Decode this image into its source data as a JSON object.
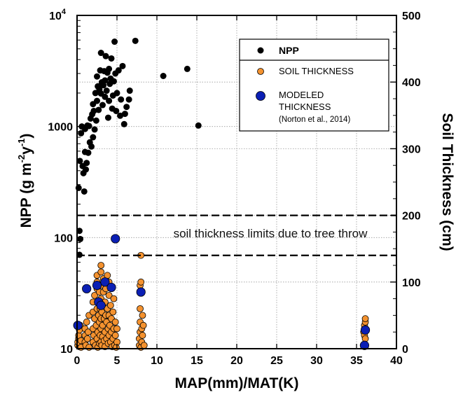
{
  "chart_data": {
    "type": "scatter",
    "title": "",
    "xlabel": "MAP(mm)/MAT(K)",
    "ylabel_left": "NPP (g m",
    "ylabel_left_sup1": "-2",
    "ylabel_left_mid": "y",
    "ylabel_left_sup2": "-1",
    "ylabel_left_end": ")",
    "ylabel_right": "Soil Thickness (cm)",
    "xlim": [
      0,
      40
    ],
    "xticks": [
      "0",
      "5",
      "10",
      "15",
      "20",
      "25",
      "30",
      "35",
      "40"
    ],
    "ylim_left": [
      10,
      10000
    ],
    "yscale_left": "log",
    "yticks_left": [
      {
        "value": 10,
        "label": "10"
      },
      {
        "value": 100,
        "label": "100"
      },
      {
        "value": 1000,
        "label": "1000"
      },
      {
        "value": 10000,
        "label": "10",
        "sup": "4"
      }
    ],
    "ylim_right": [
      0,
      500
    ],
    "yticks_right": [
      "0",
      "100",
      "200",
      "300",
      "400",
      "500"
    ],
    "grid": true,
    "legend_position": "top-right",
    "annotation": "soil thickness limits due to tree throw",
    "limit_lines_cm": [
      200,
      140
    ],
    "legend": {
      "npp_label": "NPP",
      "soil_label": "SOIL THICKNESS",
      "modeled_line1": "MODELED",
      "modeled_line2": "THICKNESS",
      "modeled_line3": "(Norton et al., 2014)"
    },
    "colors": {
      "npp": "#000000",
      "soil": "#f4922f",
      "modeled": "#0b1fb4",
      "stroke": "#000000"
    },
    "series": [
      {
        "name": "NPP",
        "axis": "left",
        "points": [
          [
            0.2,
            280
          ],
          [
            0.35,
            490
          ],
          [
            0.5,
            870
          ],
          [
            0.6,
            1000
          ],
          [
            0.7,
            440
          ],
          [
            0.8,
            380
          ],
          [
            0.9,
            260
          ],
          [
            1.0,
            590
          ],
          [
            1.0,
            950
          ],
          [
            1.1,
            410
          ],
          [
            1.2,
            470
          ],
          [
            1.3,
            1020
          ],
          [
            1.4,
            580
          ],
          [
            1.5,
            1010
          ],
          [
            1.6,
            720
          ],
          [
            1.7,
            1180
          ],
          [
            1.8,
            660
          ],
          [
            1.9,
            1290
          ],
          [
            2.0,
            800
          ],
          [
            2.0,
            1590
          ],
          [
            2.1,
            1380
          ],
          [
            2.2,
            940
          ],
          [
            2.3,
            2000
          ],
          [
            2.4,
            1130
          ],
          [
            2.5,
            1700
          ],
          [
            2.5,
            2820
          ],
          [
            2.6,
            2300
          ],
          [
            2.7,
            1410
          ],
          [
            2.8,
            2150
          ],
          [
            2.9,
            3200
          ],
          [
            3.0,
            1980
          ],
          [
            3.0,
            4600
          ],
          [
            3.1,
            2500
          ],
          [
            3.2,
            1560
          ],
          [
            3.3,
            2350
          ],
          [
            3.4,
            3150
          ],
          [
            3.5,
            1850
          ],
          [
            3.5,
            2600
          ],
          [
            3.6,
            4300
          ],
          [
            3.7,
            2100
          ],
          [
            3.8,
            3050
          ],
          [
            3.9,
            1200
          ],
          [
            4.0,
            1700
          ],
          [
            4.0,
            3300
          ],
          [
            4.1,
            2420
          ],
          [
            4.2,
            2700
          ],
          [
            4.3,
            4100
          ],
          [
            4.4,
            1450
          ],
          [
            4.5,
            1900
          ],
          [
            4.6,
            2550
          ],
          [
            4.7,
            5800
          ],
          [
            4.8,
            3000
          ],
          [
            4.9,
            1380
          ],
          [
            5.0,
            2000
          ],
          [
            5.2,
            3200
          ],
          [
            5.4,
            1250
          ],
          [
            5.5,
            1750
          ],
          [
            5.7,
            3500
          ],
          [
            5.9,
            1050
          ],
          [
            6.0,
            1300
          ],
          [
            6.2,
            1500
          ],
          [
            6.5,
            1750
          ],
          [
            6.6,
            2100
          ],
          [
            7.3,
            5900
          ],
          [
            10.8,
            2850
          ],
          [
            13.8,
            3300
          ],
          [
            15.2,
            1020
          ],
          [
            0.3,
            115
          ],
          [
            0.4,
            97
          ],
          [
            0.3,
            70
          ]
        ]
      },
      {
        "name": "SOIL THICKNESS",
        "axis": "right",
        "points": [
          [
            0.1,
            5
          ],
          [
            0.1,
            10
          ],
          [
            0.2,
            15
          ],
          [
            0.2,
            20
          ],
          [
            0.3,
            3
          ],
          [
            0.3,
            28
          ],
          [
            0.4,
            8
          ],
          [
            0.4,
            35
          ],
          [
            0.5,
            12
          ],
          [
            0.5,
            2
          ],
          [
            1.0,
            10
          ],
          [
            1.0,
            20
          ],
          [
            1.0,
            30
          ],
          [
            1.1,
            5
          ],
          [
            1.2,
            40
          ],
          [
            1.3,
            15
          ],
          [
            1.4,
            25
          ],
          [
            1.5,
            50
          ],
          [
            1.5,
            2
          ],
          [
            2.0,
            10
          ],
          [
            2.0,
            30
          ],
          [
            2.0,
            55
          ],
          [
            2.0,
            70
          ],
          [
            2.1,
            20
          ],
          [
            2.2,
            45
          ],
          [
            2.2,
            80
          ],
          [
            2.3,
            5
          ],
          [
            2.4,
            35
          ],
          [
            2.5,
            60
          ],
          [
            2.5,
            15
          ],
          [
            2.5,
            90
          ],
          [
            2.5,
            100
          ],
          [
            2.5,
            110
          ],
          [
            2.6,
            25
          ],
          [
            2.6,
            2
          ],
          [
            2.7,
            50
          ],
          [
            2.7,
            70
          ],
          [
            2.8,
            40
          ],
          [
            2.8,
            8
          ],
          [
            2.8,
            85
          ],
          [
            2.9,
            20
          ],
          [
            2.9,
            60
          ],
          [
            3.0,
            10
          ],
          [
            3.0,
            30
          ],
          [
            3.0,
            45
          ],
          [
            3.0,
            75
          ],
          [
            3.0,
            95
          ],
          [
            3.0,
            115
          ],
          [
            3.0,
            125
          ],
          [
            3.1,
            5
          ],
          [
            3.1,
            55
          ],
          [
            3.2,
            18
          ],
          [
            3.2,
            35
          ],
          [
            3.2,
            65
          ],
          [
            3.3,
            85
          ],
          [
            3.3,
            105
          ],
          [
            3.4,
            12
          ],
          [
            3.4,
            45
          ],
          [
            3.5,
            25
          ],
          [
            3.5,
            70
          ],
          [
            3.5,
            3
          ],
          [
            3.6,
            50
          ],
          [
            3.6,
            90
          ],
          [
            3.7,
            15
          ],
          [
            3.7,
            40
          ],
          [
            3.8,
            60
          ],
          [
            3.8,
            110
          ],
          [
            3.9,
            8
          ],
          [
            3.9,
            30
          ],
          [
            4.0,
            20
          ],
          [
            4.0,
            50
          ],
          [
            4.0,
            80
          ],
          [
            4.0,
            100
          ],
          [
            4.1,
            35
          ],
          [
            4.2,
            10
          ],
          [
            4.2,
            65
          ],
          [
            4.3,
            25
          ],
          [
            4.3,
            45
          ],
          [
            4.4,
            3
          ],
          [
            4.5,
            15
          ],
          [
            4.5,
            55
          ],
          [
            4.6,
            30
          ],
          [
            4.6,
            75
          ],
          [
            4.7,
            5
          ],
          [
            4.8,
            20
          ],
          [
            4.8,
            40
          ],
          [
            4.9,
            2
          ],
          [
            5.0,
            10
          ],
          [
            5.0,
            30
          ],
          [
            7.8,
            5
          ],
          [
            7.8,
            15
          ],
          [
            7.9,
            25
          ],
          [
            7.9,
            40
          ],
          [
            7.9,
            60
          ],
          [
            7.9,
            85
          ],
          [
            7.9,
            95
          ],
          [
            8.0,
            100
          ],
          [
            8.0,
            140
          ],
          [
            8.0,
            2
          ],
          [
            8.1,
            10
          ],
          [
            8.1,
            30
          ],
          [
            8.2,
            20
          ],
          [
            8.2,
            50
          ],
          [
            8.3,
            35
          ],
          [
            8.4,
            5
          ],
          [
            35.9,
            25
          ],
          [
            36.0,
            30
          ],
          [
            36.0,
            35
          ],
          [
            36.1,
            40
          ],
          [
            36.1,
            45
          ],
          [
            36.0,
            20
          ],
          [
            36.1,
            15
          ],
          [
            36.0,
            5
          ]
        ]
      },
      {
        "name": "MODELED THICKNESS",
        "axis": "right",
        "points": [
          [
            0.1,
            35
          ],
          [
            1.2,
            90
          ],
          [
            2.5,
            95
          ],
          [
            2.7,
            70
          ],
          [
            3.0,
            65
          ],
          [
            3.5,
            100
          ],
          [
            4.3,
            92
          ],
          [
            4.8,
            165
          ],
          [
            8.0,
            85
          ],
          [
            36.1,
            28
          ],
          [
            36.0,
            5
          ]
        ]
      }
    ]
  }
}
